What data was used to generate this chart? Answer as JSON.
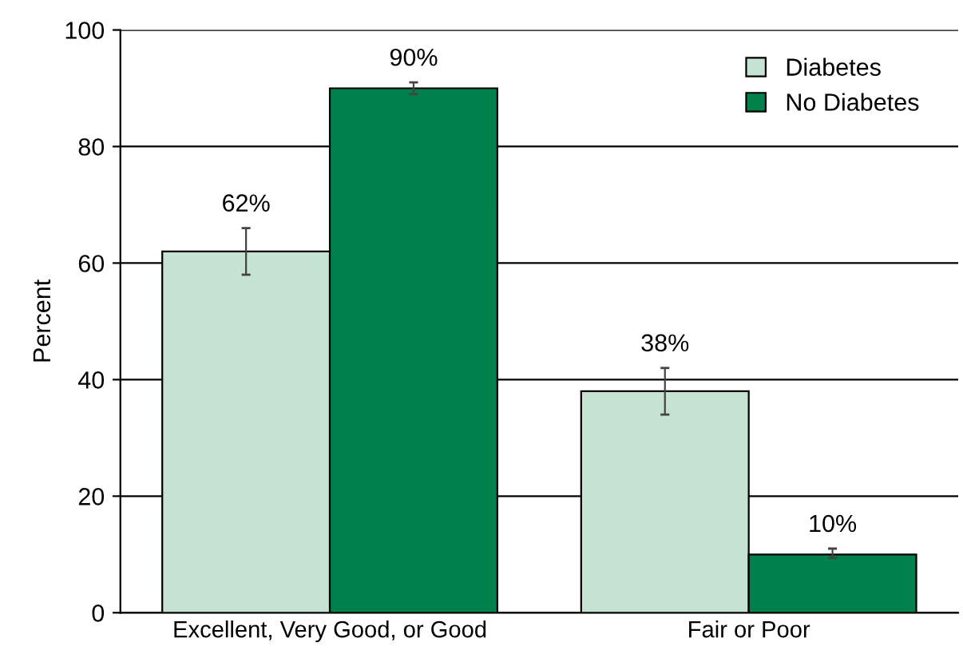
{
  "chart_data": {
    "type": "bar",
    "categories": [
      "Excellent, Very Good, or Good",
      "Fair or Poor"
    ],
    "ylabel": "Percent",
    "series": [
      {
        "name": "Diabetes",
        "color": "#c5e2d3",
        "values": [
          62,
          38
        ],
        "errors": [
          [
            58,
            66
          ],
          [
            34,
            42
          ]
        ],
        "value_labels": [
          "62%",
          "38%"
        ]
      },
      {
        "name": "No Diabetes",
        "color": "#00804a",
        "values": [
          90,
          10
        ],
        "errors": [
          [
            89,
            91
          ],
          [
            9.4,
            11
          ]
        ],
        "value_labels": [
          "90%",
          "10%"
        ]
      }
    ],
    "ylim": [
      0,
      100
    ],
    "yticks": [
      0,
      20,
      40,
      60,
      80,
      100
    ],
    "grid": "y",
    "legend": "top right"
  }
}
